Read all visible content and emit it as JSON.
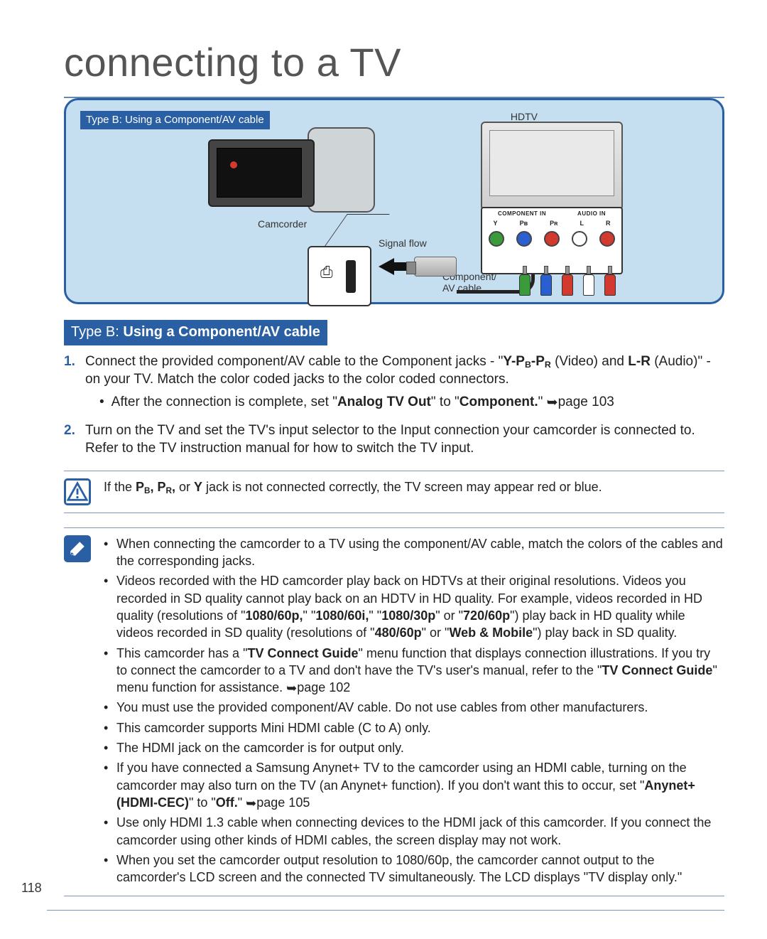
{
  "title": "connecting to a TV",
  "pageNumber": "118",
  "colors": {
    "accent": "#2a5fa3",
    "panel_bg": "#c6dff0",
    "rule": "#7a97b9",
    "text": "#222222"
  },
  "diagram": {
    "tag": "Type B: Using a Component/AV cable",
    "hdtv_label": "HDTV",
    "camcorder_label": "Camcorder",
    "signal_label": "Signal flow",
    "cable_label_1": "Component/",
    "cable_label_2": "AV cable",
    "jack_header_left": "COMPONENT IN",
    "jack_header_right": "AUDIO IN",
    "jack_labels": [
      "Y",
      "Pʙ",
      "Pʀ",
      "L",
      "R"
    ],
    "jack_colors": [
      "#3a9b3a",
      "#2a5fd0",
      "#d23a2f",
      "#ffffff",
      "#d23a2f"
    ]
  },
  "section": {
    "label_light": "Type B:",
    "label_bold": "Using a Component/AV cable"
  },
  "steps": [
    {
      "num": "1.",
      "html": "Connect the provided component/AV cable to the Component jacks - \"<b>Y-P<sub>B</sub>-P<sub>R</sub></b> (Video) and <b>L-R</b> (Audio)\" - on your TV. Match the color coded jacks to the color coded connectors.",
      "sub": [
        "After the connection is complete, set \"<b>Analog TV Out</b>\" to \"<b>Component.</b>\" <span class='arrow-ref'>➥</span>page 103"
      ]
    },
    {
      "num": "2.",
      "html": "Turn on the TV and set the TV's input selector to the Input connection your camcorder is connected to. Refer to the TV instruction manual for how to switch the TV input."
    }
  ],
  "caution": {
    "text": "If the <b>P<sub>B</sub>, P<sub>R</sub>,</b> or <b>Y</b> jack is not connected correctly, the TV screen may appear red or blue."
  },
  "notes": [
    "When connecting the camcorder to a TV using the component/AV cable, match the colors of the cables and the corresponding jacks.",
    "Videos recorded with the HD camcorder play back on HDTVs at their original resolutions. Videos you recorded in SD quality cannot play back on an HDTV in HD quality. For example, videos recorded in HD quality (resolutions of \"<b>1080/60p,</b>\" \"<b>1080/60i,</b>\" \"<b>1080/30p</b>\" or \"<b>720/60p</b>\") play back in HD quality while videos recorded in SD quality (resolutions of \"<b>480/60p</b>\" or \"<b>Web & Mobile</b>\") play back in SD quality.",
    "This camcorder has a \"<b>TV Connect Guide</b>\" menu function that displays connection illustrations. If you try to connect the camcorder to a TV and don't have the TV's user's manual, refer to the \"<b>TV Connect Guide</b>\" menu function for assistance. <span class='arrow-ref'>➥</span>page 102",
    "You must use the provided component/AV cable. Do not use cables from other manufacturers.",
    "This camcorder supports Mini HDMI cable (C to A) only.",
    "The HDMI jack on the camcorder is for output only.",
    "If you have connected a Samsung Anynet+ TV to the camcorder using an HDMI cable, turning on the camcorder may also turn on the TV (an Anynet+ function). If you don't want this to occur, set \"<b>Anynet+ (HDMI-CEC)</b>\" to \"<b>Off.</b>\" <span class='arrow-ref'>➥</span>page 105",
    "Use only HDMI 1.3 cable when connecting devices to the HDMI jack of this camcorder. If you connect the camcorder using other kinds of HDMI cables, the screen display may not work.",
    "When you set the camcorder output resolution to 1080/60p, the camcorder cannot output to the camcorder's LCD screen and the connected TV simultaneously. The LCD displays \"TV display only.\""
  ]
}
